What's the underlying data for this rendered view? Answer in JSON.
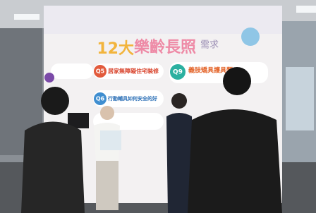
{
  "board": {
    "title_number": "12大",
    "title_main": "樂齡長照",
    "title_suffix": "需求",
    "items": [
      {
        "badge": "Q5",
        "text": "居家無障礙住宅裝修"
      },
      {
        "badge": "Q9",
        "text": "義肢矯具護具類"
      },
      {
        "badge": "Q6",
        "text": "行動輔具如何安全的好"
      }
    ]
  }
}
